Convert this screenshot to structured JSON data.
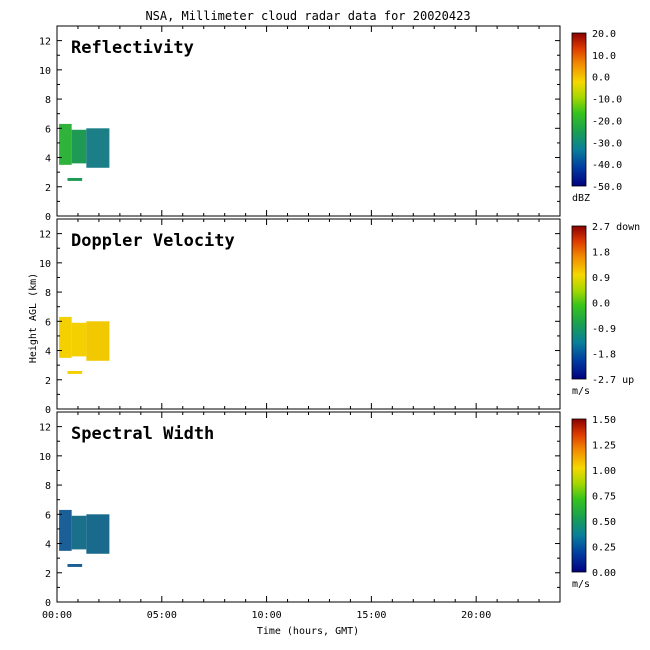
{
  "figure_title": "NSA, Millimeter cloud radar data for 20020423",
  "x_label": "Time (hours, GMT)",
  "y_label": "Height AGL (km)",
  "chart_data": [
    {
      "type": "heatmap",
      "title": "Reflectivity",
      "xlabel": "Time (hours, GMT)",
      "ylabel": "Height AGL (km)",
      "xlim": [
        0,
        24
      ],
      "ylim": [
        0,
        13
      ],
      "x_ticks": [
        "00:00",
        "05:00",
        "10:00",
        "15:00",
        "20:00"
      ],
      "y_ticks": [
        "0",
        "2",
        "4",
        "6",
        "8",
        "10",
        "12"
      ],
      "colorbar": {
        "unit": "dBZ",
        "labels": [
          "20.0",
          "10.0",
          "0.0",
          "-10.0",
          "-20.0",
          "-30.0",
          "-40.0",
          "-50.0"
        ],
        "range": [
          -50,
          20
        ]
      },
      "regions": [
        {
          "x0": 0.1,
          "x1": 0.7,
          "y0": 3.5,
          "y1": 6.3,
          "color": "#2fb33a"
        },
        {
          "x0": 0.7,
          "x1": 1.4,
          "y0": 3.6,
          "y1": 5.9,
          "color": "#1f9a55"
        },
        {
          "x0": 1.4,
          "x1": 2.5,
          "y0": 3.3,
          "y1": 6.0,
          "color": "#1c7f88"
        },
        {
          "x0": 0.5,
          "x1": 1.2,
          "y0": 2.4,
          "y1": 2.6,
          "color": "#1f9a55"
        }
      ]
    },
    {
      "type": "heatmap",
      "title": "Doppler Velocity",
      "xlabel": "Time (hours, GMT)",
      "ylabel": "Height AGL (km)",
      "xlim": [
        0,
        24
      ],
      "ylim": [
        0,
        13
      ],
      "x_ticks": [
        "00:00",
        "05:00",
        "10:00",
        "15:00",
        "20:00"
      ],
      "y_ticks": [
        "0",
        "2",
        "4",
        "6",
        "8",
        "10",
        "12"
      ],
      "colorbar": {
        "unit": "m/s",
        "labels": [
          "2.7 down",
          "1.8",
          "0.9",
          "0.0",
          "-0.9",
          "-1.8",
          "-2.7 up"
        ],
        "range": [
          -2.7,
          2.7
        ]
      },
      "regions": [
        {
          "x0": 0.1,
          "x1": 0.7,
          "y0": 3.5,
          "y1": 6.3,
          "color": "#f5d000"
        },
        {
          "x0": 0.7,
          "x1": 1.4,
          "y0": 3.6,
          "y1": 5.9,
          "color": "#f5d000"
        },
        {
          "x0": 1.4,
          "x1": 2.5,
          "y0": 3.3,
          "y1": 6.0,
          "color": "#f2c800"
        },
        {
          "x0": 0.5,
          "x1": 1.2,
          "y0": 2.4,
          "y1": 2.6,
          "color": "#f5d000"
        }
      ]
    },
    {
      "type": "heatmap",
      "title": "Spectral Width",
      "xlabel": "Time (hours, GMT)",
      "ylabel": "Height AGL (km)",
      "xlim": [
        0,
        24
      ],
      "ylim": [
        0,
        13
      ],
      "x_ticks": [
        "00:00",
        "05:00",
        "10:00",
        "15:00",
        "20:00"
      ],
      "y_ticks": [
        "0",
        "2",
        "4",
        "6",
        "8",
        "10",
        "12"
      ],
      "colorbar": {
        "unit": "m/s",
        "labels": [
          "1.50",
          "1.25",
          "1.00",
          "0.75",
          "0.50",
          "0.25",
          "0.00"
        ],
        "range": [
          0,
          1.5
        ]
      },
      "regions": [
        {
          "x0": 0.1,
          "x1": 0.7,
          "y0": 3.5,
          "y1": 6.3,
          "color": "#1a5f95"
        },
        {
          "x0": 0.7,
          "x1": 1.4,
          "y0": 3.6,
          "y1": 5.9,
          "color": "#1a6f8a"
        },
        {
          "x0": 1.4,
          "x1": 2.5,
          "y0": 3.3,
          "y1": 6.0,
          "color": "#1a6a8e"
        },
        {
          "x0": 0.5,
          "x1": 1.2,
          "y0": 2.4,
          "y1": 2.6,
          "color": "#1a5f95"
        }
      ]
    }
  ]
}
